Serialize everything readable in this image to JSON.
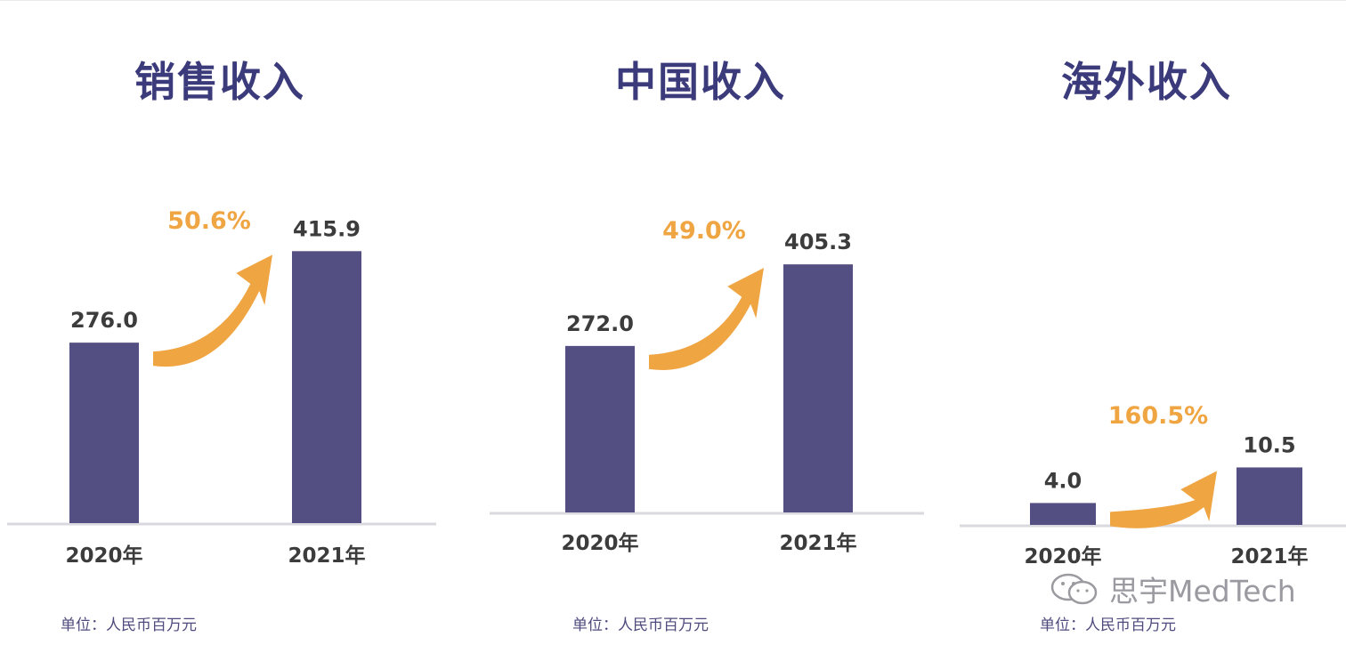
{
  "chart_data": [
    {
      "type": "bar",
      "title": "销售收入",
      "categories": [
        "2020年",
        "2021年"
      ],
      "values": [
        276.0,
        415.9
      ],
      "value_labels": [
        "276.0",
        "415.9"
      ],
      "growth_label": "50.6%"
    },
    {
      "type": "bar",
      "title": "中国收入",
      "categories": [
        "2020年",
        "2021年"
      ],
      "values": [
        272.0,
        405.3
      ],
      "value_labels": [
        "272.0",
        "405.3"
      ],
      "growth_label": "49.0%"
    },
    {
      "type": "bar",
      "title": "海外收入",
      "categories": [
        "2020年",
        "2021年"
      ],
      "values": [
        4.0,
        10.5
      ],
      "value_labels": [
        "4.0",
        "10.5"
      ],
      "growth_label": "160.5%"
    }
  ],
  "unit_label": "单位：人民币百万元",
  "watermark": "思宇MedTech",
  "colors": {
    "bar": "#544f82",
    "arrow": "#f0a543",
    "title": "#3b3a7a",
    "axis": "#d9d9df",
    "text": "#3c3c3c"
  }
}
